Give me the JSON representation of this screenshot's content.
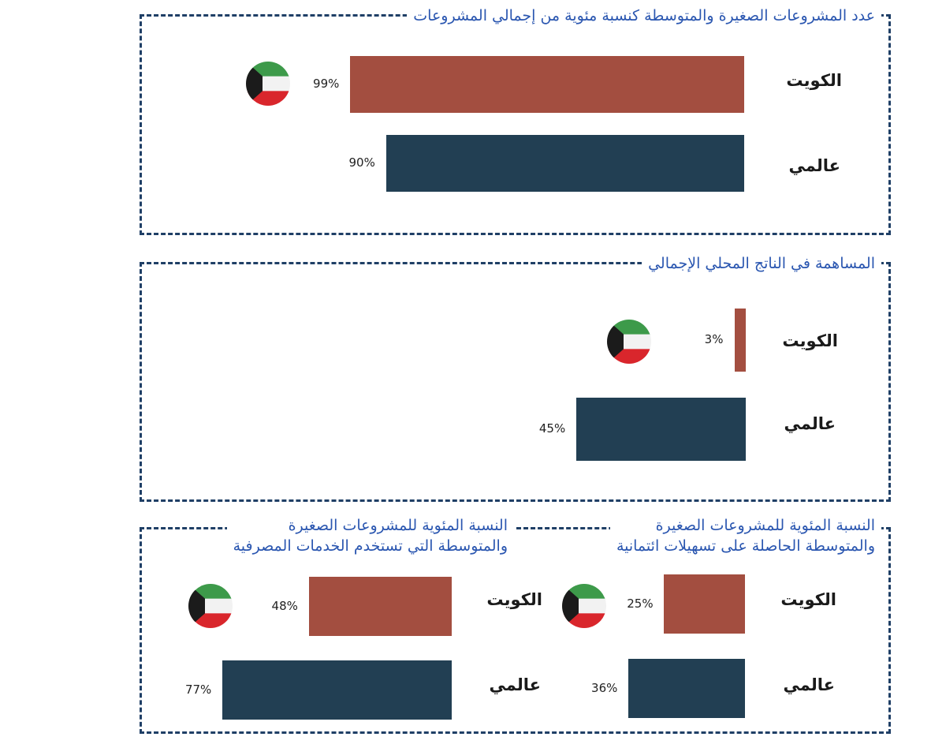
{
  "colors": {
    "kuwait": "#a34e40",
    "global": "#223f53",
    "frame": "#1f3f66",
    "title": "#2a56b0"
  },
  "icons": {
    "flag": "kuwait-flag-icon"
  },
  "chart_data": [
    {
      "type": "bar",
      "title": "عدد المشروعات الصغيرة والمتوسطة كنسبة مئوية من إجمالي المشروعات",
      "categories": [
        "الكويت",
        "عالمي"
      ],
      "values": [
        99,
        90
      ],
      "labels": [
        "99%",
        "90%"
      ],
      "xlim": [
        0,
        100
      ]
    },
    {
      "type": "bar",
      "title": "المساهمة في الناتج المحلي الإجمالي",
      "categories": [
        "الكويت",
        "عالمي"
      ],
      "values": [
        3,
        45
      ],
      "labels": [
        "3%",
        "45%"
      ],
      "xlim": [
        0,
        100
      ]
    },
    {
      "type": "bar",
      "title": [
        "النسبة المئوية للمشروعات الصغيرة",
        "والمتوسطة الحاصلة على تسهيلات ائتمانية"
      ],
      "categories": [
        "الكويت",
        "عالمي"
      ],
      "values": [
        25,
        36
      ],
      "labels": [
        "25%",
        "36%"
      ],
      "xlim": [
        0,
        100
      ]
    },
    {
      "type": "bar",
      "title": [
        "النسبة المئوية للمشروعات الصغيرة",
        "والمتوسطة التي تستخدم الخدمات المصرفية"
      ],
      "categories": [
        "الكويت",
        "عالمي"
      ],
      "values": [
        48,
        77
      ],
      "labels": [
        "48%",
        "77%"
      ],
      "xlim": [
        0,
        100
      ]
    }
  ]
}
